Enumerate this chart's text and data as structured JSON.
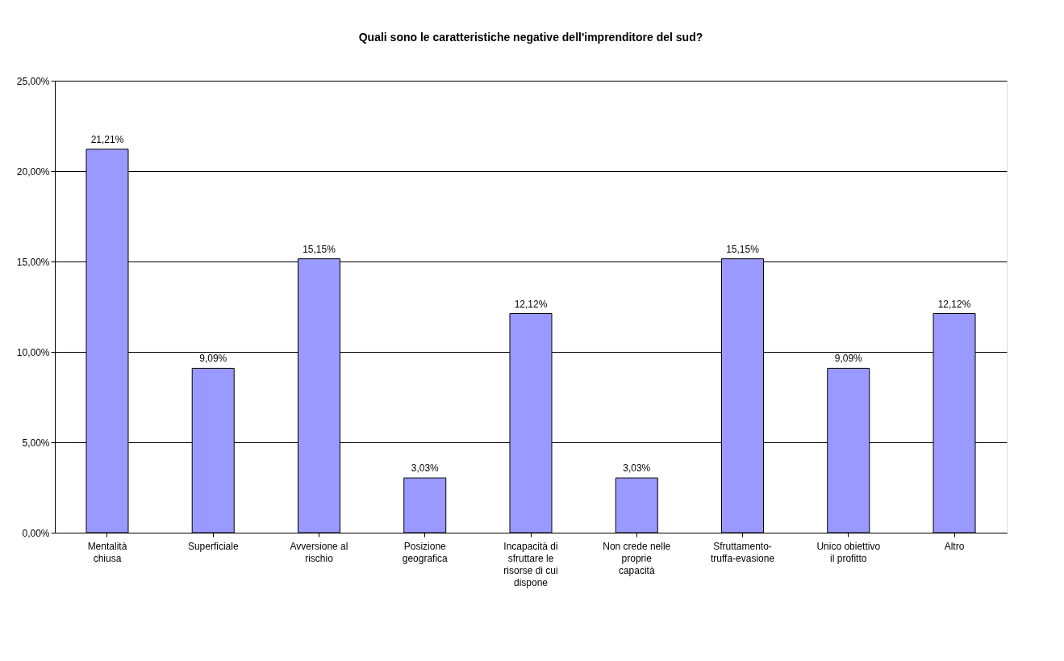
{
  "chart_data": {
    "type": "bar",
    "title": "Quali sono le caratteristiche negative dell'imprenditore del sud?",
    "categories": [
      "Mentalità chiusa",
      "Superficiale",
      "Avversione al rischio",
      "Posizione geografica",
      "Incapacità di sfruttare le risorse di cui dispone",
      "Non crede nelle proprie capacità",
      "Sfruttamento-truffa-evasione",
      "Unico obiettivo il profitto",
      "Altro"
    ],
    "values": [
      21.21,
      9.09,
      15.15,
      3.03,
      12.12,
      3.03,
      15.15,
      9.09,
      12.12
    ],
    "value_labels": [
      "21,21%",
      "9,09%",
      "15,15%",
      "3,03%",
      "12,12%",
      "3,03%",
      "15,15%",
      "9,09%",
      "12,12%"
    ],
    "color": "#9999ff",
    "ylim": [
      0,
      25
    ],
    "yticks": [
      {
        "value": 0,
        "label": "0,00%"
      },
      {
        "value": 5,
        "label": "5,00%"
      },
      {
        "value": 10,
        "label": "10,00%"
      },
      {
        "value": 15,
        "label": "15,00%"
      },
      {
        "value": 20,
        "label": "20,00%"
      },
      {
        "value": 25,
        "label": "25,00%"
      }
    ],
    "grid": "y"
  }
}
